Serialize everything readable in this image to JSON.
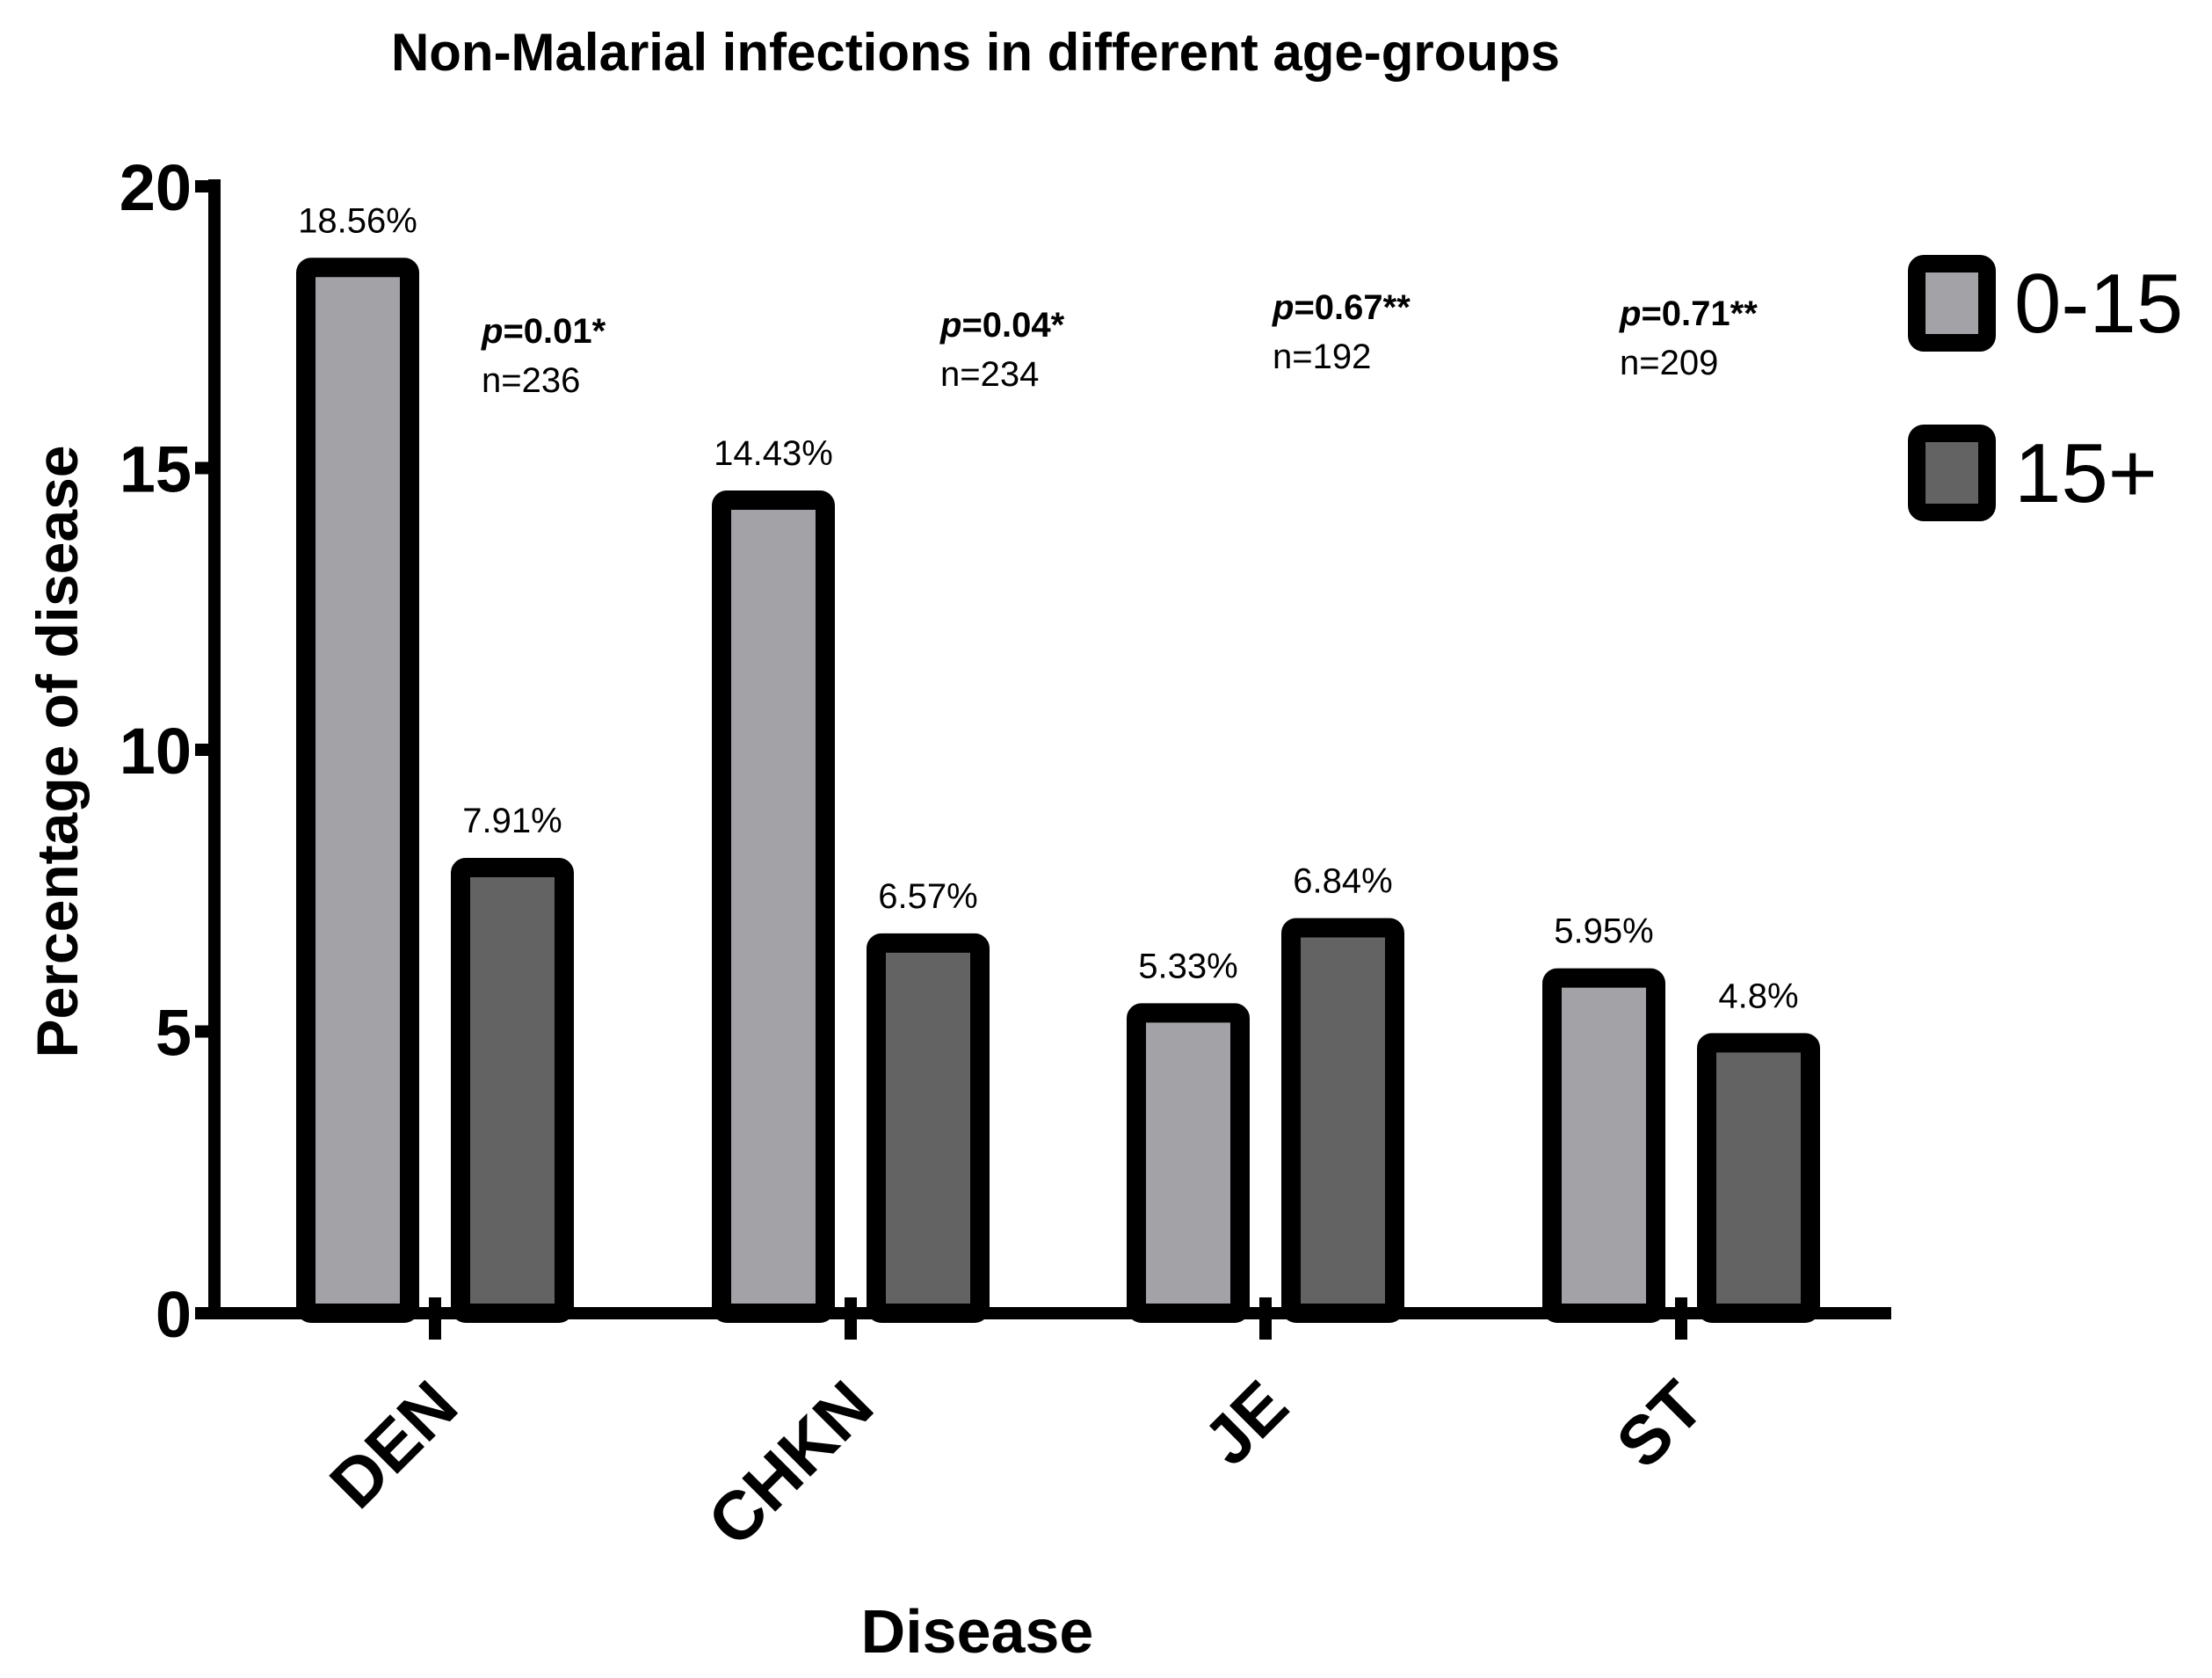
{
  "chart_data": {
    "type": "bar",
    "title": "Non-Malarial infections in different age-groups",
    "xlabel": "Disease",
    "ylabel": "Percentage of disease",
    "ylim": [
      0,
      20
    ],
    "yticks": [
      "0",
      "5",
      "10",
      "15",
      "20"
    ],
    "categories": [
      "DEN",
      "CHKN",
      "JE",
      "ST"
    ],
    "series": [
      {
        "name": "0-15",
        "color": "#a2a2a7",
        "values": [
          18.56,
          14.43,
          5.33,
          5.95
        ],
        "labels": [
          "18.56%",
          "14.43%",
          "5.33%",
          "5.95%"
        ]
      },
      {
        "name": "15+",
        "color": "#636363",
        "values": [
          7.91,
          6.57,
          6.84,
          4.8
        ],
        "labels": [
          "7.91%",
          "6.57%",
          "6.84%",
          "4.8%"
        ]
      }
    ],
    "annotations": [
      {
        "category": "DEN",
        "p_label": "p",
        "p_value": "=0.01*",
        "n": "n=236"
      },
      {
        "category": "CHKN",
        "p_label": "p",
        "p_value": "=0.04*",
        "n": "n=234"
      },
      {
        "category": "JE",
        "p_label": "p",
        "p_value": "=0.67**",
        "n": "n=192"
      },
      {
        "category": "ST",
        "p_label": "p",
        "p_value": "=0.71**",
        "n": "n=209"
      }
    ],
    "legend_position": "top-right",
    "grid": false
  }
}
